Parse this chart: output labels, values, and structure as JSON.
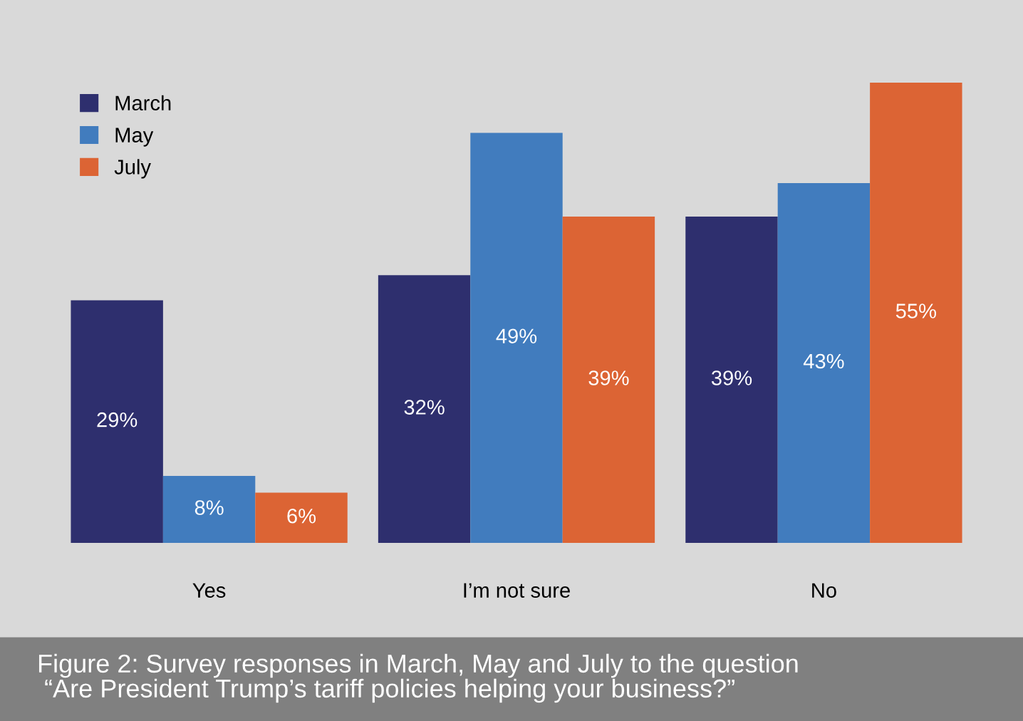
{
  "chart_data": {
    "type": "bar",
    "categories": [
      "Yes",
      "I’m not sure",
      "No"
    ],
    "series": [
      {
        "name": "March",
        "color": "#2e2f6e",
        "values": [
          29,
          32,
          39
        ],
        "value_labels": [
          "29%",
          "32%",
          "39%"
        ]
      },
      {
        "name": "May",
        "color": "#417cbe",
        "values": [
          8,
          49,
          43
        ],
        "value_labels": [
          "8%",
          "49%",
          "43%"
        ]
      },
      {
        "name": "July",
        "color": "#dc6434",
        "values": [
          6,
          39,
          55
        ],
        "value_labels": [
          "6%",
          "39%",
          "55%"
        ]
      }
    ],
    "legend": "top left",
    "grid": false,
    "annotations": [
      "Figure 2: Survey responses in March, May and July to the question\n “Are President Trump’s tariff policies helping your business?”"
    ]
  }
}
